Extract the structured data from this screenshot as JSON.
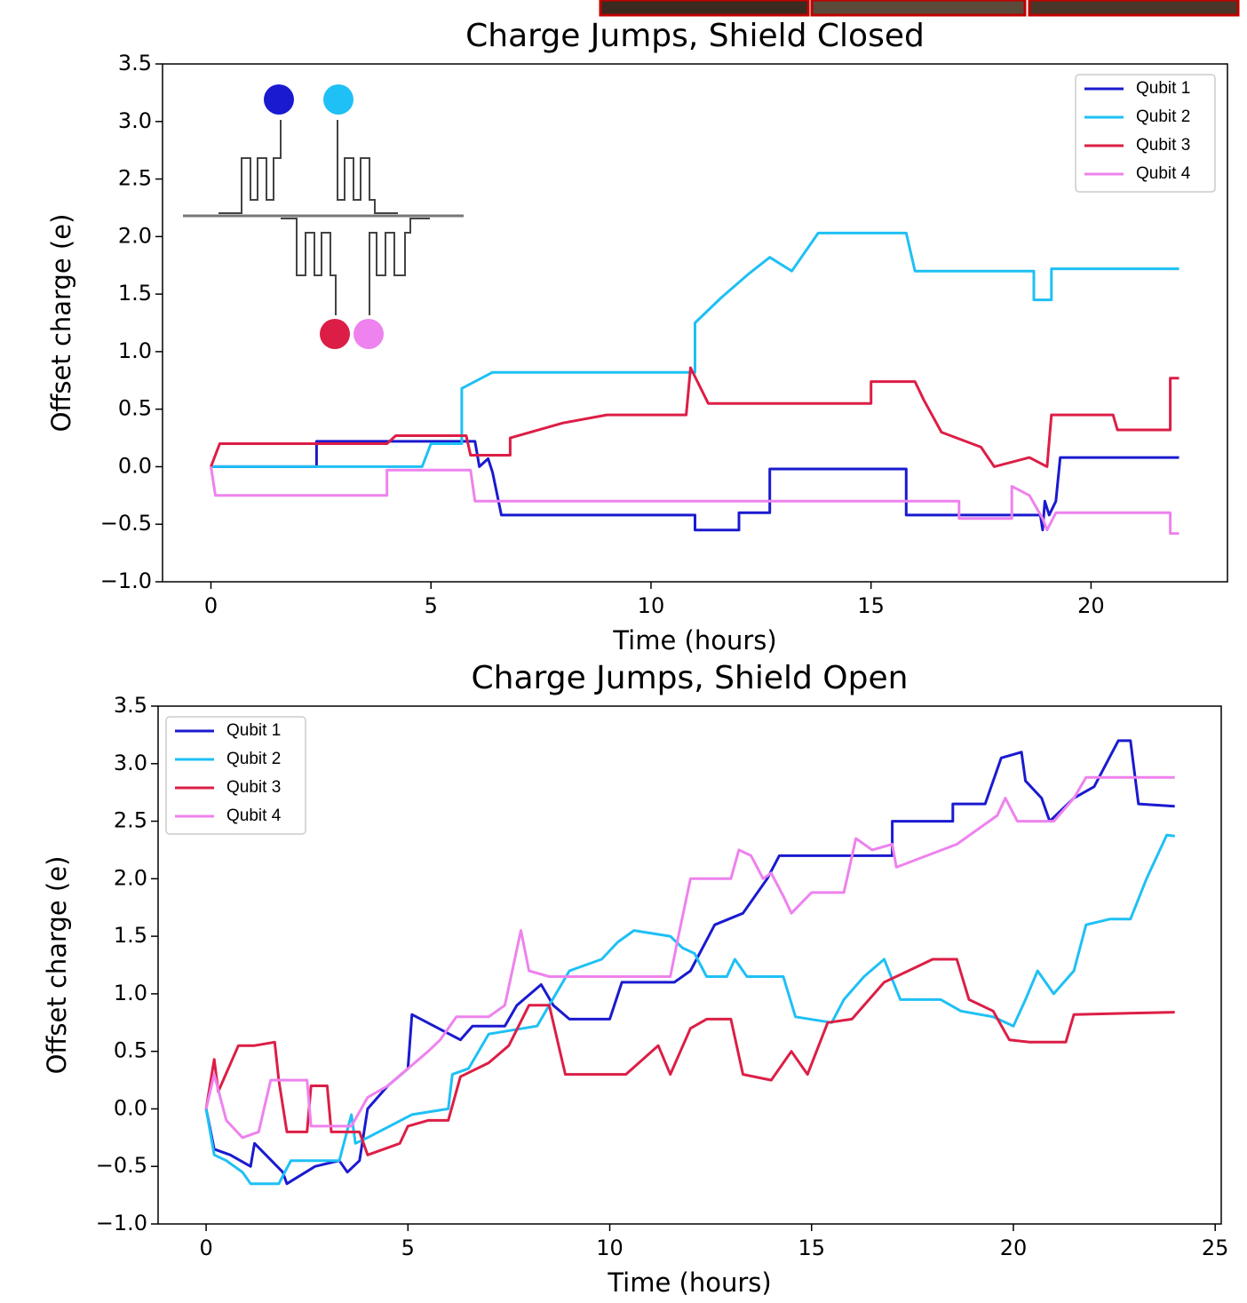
{
  "chart_data": [
    {
      "type": "line",
      "title": "Charge Jumps, Shield Closed",
      "xlabel": "Time (hours)",
      "ylabel": "Offset charge (e)",
      "xlim": [
        -1.1,
        23.1
      ],
      "xticks": [
        0,
        5,
        10,
        15,
        20
      ],
      "ylim": [
        -1.0,
        3.5
      ],
      "yticks": [
        {
          "value": -1.0,
          "label": "−1.0"
        },
        {
          "value": -0.5,
          "label": "−0.5"
        },
        {
          "value": 0,
          "label": "0.0"
        },
        {
          "value": 0.5,
          "label": "0.5"
        },
        {
          "value": 1.0,
          "label": "1.0"
        },
        {
          "value": 1.5,
          "label": "1.5"
        },
        {
          "value": 2.0,
          "label": "2.0"
        },
        {
          "value": 2.5,
          "label": "2.5"
        },
        {
          "value": 3.0,
          "label": "3.0"
        },
        {
          "value": 3.5,
          "label": "3.5"
        }
      ],
      "legend": "upper right",
      "series": [
        {
          "name": "Qubit 1",
          "color": "#1a1ad0",
          "x": [
            0,
            2.4,
            2.4,
            6.0,
            6.1,
            6.3,
            6.4,
            6.6,
            11.0,
            11.0,
            12.0,
            12.0,
            12.7,
            12.7,
            15.8,
            15.8,
            18.85,
            18.9,
            18.95,
            19.05,
            19.2,
            19.3,
            22.0
          ],
          "values": [
            0,
            0,
            0.22,
            0.22,
            0.0,
            0.07,
            -0.05,
            -0.42,
            -0.42,
            -0.55,
            -0.55,
            -0.4,
            -0.4,
            -0.02,
            -0.02,
            -0.42,
            -0.42,
            -0.55,
            -0.3,
            -0.42,
            -0.3,
            0.08,
            0.08
          ]
        },
        {
          "name": "Qubit 2",
          "color": "#1ec0f5",
          "x": [
            0,
            4.8,
            5.0,
            5.7,
            5.7,
            6.4,
            11.0,
            11.0,
            11.6,
            12.2,
            12.7,
            13.2,
            13.8,
            15.8,
            16.0,
            18.7,
            18.7,
            19.1,
            19.1,
            22.0
          ],
          "values": [
            0,
            0,
            0.2,
            0.2,
            0.68,
            0.82,
            0.82,
            1.25,
            1.47,
            1.67,
            1.82,
            1.7,
            2.03,
            2.03,
            1.7,
            1.7,
            1.45,
            1.45,
            1.72,
            1.72
          ]
        },
        {
          "name": "Qubit 3",
          "color": "#dc1e46",
          "x": [
            0,
            0.2,
            4.0,
            4.2,
            5.8,
            5.9,
            6.8,
            6.8,
            8.0,
            9.0,
            10.8,
            10.9,
            11.3,
            15.0,
            15.0,
            16.0,
            16.2,
            16.6,
            17.5,
            17.8,
            18.6,
            19.0,
            19.1,
            20.5,
            20.6,
            21.8,
            21.8,
            22.0
          ],
          "values": [
            0,
            0.2,
            0.2,
            0.27,
            0.27,
            0.1,
            0.1,
            0.25,
            0.38,
            0.45,
            0.45,
            0.86,
            0.55,
            0.55,
            0.74,
            0.74,
            0.58,
            0.3,
            0.17,
            0.0,
            0.08,
            0.0,
            0.45,
            0.45,
            0.32,
            0.32,
            0.77,
            0.77
          ]
        },
        {
          "name": "Qubit 4",
          "color": "#ee82ee",
          "x": [
            0,
            0.1,
            4.0,
            4.0,
            5.9,
            6.0,
            17.0,
            17.0,
            18.2,
            18.2,
            18.6,
            18.9,
            19.0,
            19.2,
            21.8,
            21.8,
            22.0
          ],
          "values": [
            0,
            -0.25,
            -0.25,
            -0.03,
            -0.03,
            -0.3,
            -0.3,
            -0.45,
            -0.45,
            -0.17,
            -0.25,
            -0.45,
            -0.55,
            -0.4,
            -0.4,
            -0.58,
            -0.58
          ]
        }
      ]
    },
    {
      "type": "line",
      "title": "Charge Jumps, Shield Open",
      "xlabel": "Time (hours)",
      "ylabel": "Offset charge (e)",
      "xlim": [
        -1.19,
        25.15
      ],
      "xticks": [
        0,
        5,
        10,
        15,
        20,
        25
      ],
      "ylim": [
        -1.0,
        3.5
      ],
      "yticks": [
        {
          "value": -1.0,
          "label": "−1.0"
        },
        {
          "value": -0.5,
          "label": "−0.5"
        },
        {
          "value": 0,
          "label": "0.0"
        },
        {
          "value": 0.5,
          "label": "0.5"
        },
        {
          "value": 1.0,
          "label": "1.0"
        },
        {
          "value": 1.5,
          "label": "1.5"
        },
        {
          "value": 2.0,
          "label": "2.0"
        },
        {
          "value": 2.5,
          "label": "2.5"
        },
        {
          "value": 3.0,
          "label": "3.0"
        },
        {
          "value": 3.5,
          "label": "3.5"
        }
      ],
      "legend": "upper left",
      "series": [
        {
          "name": "Qubit 1",
          "color": "#1a1ad0",
          "x": [
            0,
            0.2,
            0.6,
            1.1,
            1.2,
            1.9,
            2.0,
            2.7,
            3.3,
            3.5,
            3.8,
            4.0,
            4.5,
            5.0,
            5.1,
            6.3,
            6.6,
            7.4,
            7.7,
            8.3,
            8.6,
            9.0,
            10.0,
            10.3,
            11.6,
            12.0,
            12.6,
            13.3,
            13.9,
            14.2,
            17.0,
            17.0,
            18.5,
            18.5,
            19.3,
            19.7,
            20.2,
            20.3,
            20.7,
            20.9,
            21.5,
            22.0,
            22.6,
            22.9,
            23.1,
            24.0
          ],
          "values": [
            0,
            -0.35,
            -0.4,
            -0.5,
            -0.3,
            -0.55,
            -0.65,
            -0.5,
            -0.45,
            -0.55,
            -0.45,
            0,
            0.2,
            0.35,
            0.82,
            0.6,
            0.72,
            0.72,
            0.9,
            1.08,
            0.9,
            0.78,
            0.78,
            1.1,
            1.1,
            1.2,
            1.6,
            1.7,
            2.0,
            2.2,
            2.2,
            2.5,
            2.5,
            2.65,
            2.65,
            3.05,
            3.1,
            2.85,
            2.7,
            2.5,
            2.7,
            2.8,
            3.2,
            3.2,
            2.65,
            2.63
          ]
        },
        {
          "name": "Qubit 2",
          "color": "#1ec0f5",
          "x": [
            0,
            0.2,
            0.5,
            0.9,
            1.1,
            1.8,
            2.1,
            3.3,
            3.6,
            3.7,
            4.0,
            5.1,
            6.0,
            6.1,
            6.5,
            7.0,
            8.2,
            8.5,
            9.0,
            9.8,
            10.2,
            10.6,
            11.5,
            11.8,
            12.1,
            12.4,
            12.9,
            13.1,
            13.4,
            14.3,
            14.6,
            15.5,
            15.8,
            16.3,
            16.8,
            17.2,
            18.2,
            18.7,
            19.5,
            20.0,
            20.3,
            20.6,
            21.0,
            21.5,
            21.8,
            22.4,
            22.9,
            23.3,
            23.8,
            24.0
          ],
          "values": [
            0,
            -0.4,
            -0.45,
            -0.55,
            -0.65,
            -0.65,
            -0.45,
            -0.45,
            -0.05,
            -0.3,
            -0.25,
            -0.05,
            0,
            0.3,
            0.35,
            0.65,
            0.72,
            0.9,
            1.2,
            1.3,
            1.45,
            1.55,
            1.5,
            1.4,
            1.35,
            1.15,
            1.15,
            1.3,
            1.15,
            1.15,
            0.8,
            0.75,
            0.95,
            1.15,
            1.3,
            0.95,
            0.95,
            0.85,
            0.8,
            0.72,
            0.95,
            1.2,
            1.0,
            1.2,
            1.6,
            1.65,
            1.65,
            2.0,
            2.38,
            2.37
          ]
        },
        {
          "name": "Qubit 3",
          "color": "#dc1e46",
          "x": [
            0,
            0.2,
            0.3,
            0.8,
            1.2,
            1.7,
            1.8,
            2.0,
            2.5,
            2.6,
            3.0,
            3.1,
            3.8,
            4.0,
            4.8,
            5.0,
            5.5,
            6.0,
            6.3,
            7.0,
            7.5,
            8.0,
            8.5,
            8.9,
            10.4,
            11.2,
            11.5,
            12.0,
            12.4,
            13.0,
            13.3,
            14.0,
            14.5,
            14.9,
            15.4,
            16.0,
            16.8,
            17.4,
            18.0,
            18.6,
            18.9,
            19.5,
            19.9,
            20.4,
            21.3,
            21.5,
            24.0
          ],
          "values": [
            0,
            0.43,
            0.15,
            0.55,
            0.55,
            0.58,
            0.25,
            -0.2,
            -0.2,
            0.2,
            0.2,
            -0.2,
            -0.2,
            -0.4,
            -0.3,
            -0.15,
            -0.1,
            -0.1,
            0.28,
            0.4,
            0.55,
            0.9,
            0.9,
            0.3,
            0.3,
            0.55,
            0.3,
            0.7,
            0.78,
            0.78,
            0.3,
            0.25,
            0.5,
            0.3,
            0.75,
            0.78,
            1.1,
            1.2,
            1.3,
            1.3,
            0.95,
            0.85,
            0.6,
            0.58,
            0.58,
            0.82,
            0.84
          ]
        },
        {
          "name": "Qubit 4",
          "color": "#ee82ee",
          "x": [
            0,
            0.2,
            0.5,
            0.9,
            1.3,
            1.6,
            2.5,
            2.6,
            3.6,
            4.0,
            4.5,
            5.0,
            5.5,
            5.8,
            6.2,
            7.0,
            7.4,
            7.8,
            8.0,
            8.5,
            9.0,
            11.5,
            11.7,
            12.0,
            13.0,
            13.2,
            13.5,
            13.8,
            14.0,
            14.3,
            14.5,
            15.0,
            15.8,
            16.1,
            16.5,
            17.0,
            17.1,
            18.6,
            19.6,
            19.8,
            20.1,
            21.0,
            21.5,
            21.8,
            24.0
          ],
          "values": [
            0,
            0.3,
            -0.1,
            -0.25,
            -0.2,
            0.25,
            0.25,
            -0.15,
            -0.15,
            0.1,
            0.2,
            0.35,
            0.5,
            0.6,
            0.8,
            0.8,
            0.9,
            1.55,
            1.2,
            1.15,
            1.15,
            1.15,
            1.5,
            2.0,
            2.0,
            2.25,
            2.2,
            2.0,
            2.05,
            1.85,
            1.7,
            1.88,
            1.88,
            2.35,
            2.25,
            2.3,
            2.1,
            2.3,
            2.55,
            2.7,
            2.5,
            2.5,
            2.7,
            2.88,
            2.88
          ]
        }
      ]
    }
  ]
}
